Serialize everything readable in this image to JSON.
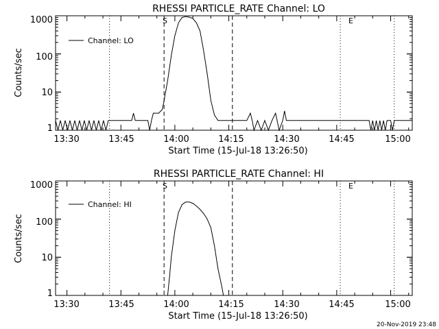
{
  "footer": {
    "timestamp": "20-Nov-2019 23:48"
  },
  "chart_data": [
    {
      "type": "line",
      "title": "RHESSI PARTICLE_RATE Channel: LO",
      "xlabel": "Start Time (15-Jul-18 13:26:50)",
      "ylabel": "Counts/sec",
      "y_scale": "log",
      "ylim": [
        1,
        1000
      ],
      "xlim": [
        "13:26:50",
        "15:06:00"
      ],
      "y_ticks": [
        "1",
        "10",
        "100",
        "1000"
      ],
      "x_ticks": [
        "13:30",
        "13:45",
        "14:00",
        "14:15",
        "14:30",
        "14:45",
        "15:00"
      ],
      "legend": {
        "position": "top-left",
        "entries": [
          "Channel: LO"
        ]
      },
      "markers": [
        {
          "label": "S",
          "time": "13:57:00",
          "style": "dashed"
        },
        {
          "label": "",
          "time": "14:16:00",
          "style": "dashed"
        },
        {
          "label": "E",
          "time": "14:46:00",
          "style": "dotted"
        }
      ],
      "night_lines": [
        {
          "time": "13:41:50",
          "style": "dotted"
        },
        {
          "time": "15:01:00",
          "style": "dotted"
        }
      ],
      "series": [
        {
          "name": "Channel: LO",
          "x": [
            "13:26:50",
            "13:27:30",
            "13:28:10",
            "13:28:50",
            "13:29:30",
            "13:30:10",
            "13:30:50",
            "13:31:30",
            "13:32:10",
            "13:32:50",
            "13:33:30",
            "13:34:10",
            "13:34:50",
            "13:35:30",
            "13:36:10",
            "13:36:50",
            "13:37:30",
            "13:38:10",
            "13:38:50",
            "13:39:30",
            "13:40:10",
            "13:40:50",
            "13:41:30",
            "13:42:10",
            "13:45:00",
            "13:48:00",
            "13:48:30",
            "13:49:00",
            "13:52:30",
            "13:53:00",
            "13:53:30",
            "13:54:00",
            "13:55:30",
            "13:56:30",
            "13:57:00",
            "13:58:00",
            "13:59:00",
            "14:00:00",
            "14:01:00",
            "14:02:00",
            "14:03:00",
            "14:04:00",
            "14:05:00",
            "14:06:00",
            "14:07:00",
            "14:08:00",
            "14:09:00",
            "14:10:00",
            "14:11:00",
            "14:12:00",
            "14:13:00",
            "14:13:30",
            "14:14:00",
            "14:16:00",
            "14:20:00",
            "14:21:00",
            "14:21:30",
            "14:22:00",
            "14:23:00",
            "14:24:00",
            "14:25:00",
            "14:26:00",
            "14:27:00",
            "14:28:00",
            "14:29:00",
            "14:30:00",
            "14:30:30",
            "14:31:00",
            "14:45:00",
            "14:46:30",
            "14:50:00",
            "14:54:00",
            "14:54:30",
            "14:55:00",
            "14:55:30",
            "14:56:00",
            "14:56:30",
            "14:57:00",
            "14:57:30",
            "14:58:00",
            "14:58:30",
            "14:59:00",
            "14:59:30",
            "15:00:00",
            "15:00:30",
            "15:01:00",
            "15:03:00",
            "15:06:00"
          ],
          "values": [
            1.8,
            1,
            1.8,
            1,
            1.8,
            1,
            1.8,
            1,
            1.8,
            1,
            1.8,
            1,
            1.8,
            1,
            1.8,
            1,
            1.8,
            1,
            1.8,
            1,
            1.8,
            1,
            1.8,
            1.8,
            1.8,
            1.8,
            2.8,
            1.8,
            1.8,
            1,
            1.8,
            2.8,
            2.8,
            3.5,
            6,
            20,
            90,
            300,
            650,
            900,
            950,
            920,
            850,
            650,
            400,
            120,
            30,
            6,
            2.5,
            1.8,
            1.8,
            1.8,
            1.8,
            1.8,
            1.8,
            2.8,
            1.8,
            1,
            1.8,
            1,
            1.8,
            1,
            1.8,
            2.8,
            1,
            1.8,
            3.2,
            1.8,
            1.8,
            1.8,
            1.8,
            1.8,
            1,
            1.8,
            1,
            1.8,
            1,
            1.8,
            1,
            1.8,
            1,
            1.8,
            1.8,
            1.8,
            1,
            1.8,
            1.8,
            1.8
          ]
        }
      ]
    },
    {
      "type": "line",
      "title": "RHESSI PARTICLE_RATE Channel: HI",
      "xlabel": "Start Time (15-Jul-18 13:26:50)",
      "ylabel": "Counts/sec",
      "y_scale": "log",
      "ylim": [
        1,
        1000
      ],
      "xlim": [
        "13:26:50",
        "15:06:00"
      ],
      "y_ticks": [
        "1",
        "10",
        "100",
        "1000"
      ],
      "x_ticks": [
        "13:30",
        "13:45",
        "14:00",
        "14:15",
        "14:30",
        "14:45",
        "15:00"
      ],
      "legend": {
        "position": "top-left",
        "entries": [
          "Channel: HI"
        ]
      },
      "markers": [
        {
          "label": "S",
          "time": "13:57:00",
          "style": "dashed"
        },
        {
          "label": "",
          "time": "14:16:00",
          "style": "dashed"
        },
        {
          "label": "E",
          "time": "14:46:00",
          "style": "dotted"
        }
      ],
      "night_lines": [
        {
          "time": "13:41:50",
          "style": "dotted"
        },
        {
          "time": "15:01:00",
          "style": "dotted"
        }
      ],
      "series": [
        {
          "name": "Channel: HI",
          "x": [
            "13:58:00",
            "13:58:30",
            "13:59:00",
            "14:00:00",
            "14:01:00",
            "14:02:00",
            "14:03:00",
            "14:04:00",
            "14:05:00",
            "14:06:00",
            "14:07:00",
            "14:08:00",
            "14:09:00",
            "14:10:00",
            "14:11:00",
            "14:12:00",
            "14:13:00",
            "14:13:30"
          ],
          "values": [
            1,
            3,
            10,
            50,
            150,
            240,
            280,
            280,
            260,
            220,
            180,
            140,
            100,
            60,
            20,
            5,
            1.8,
            1
          ]
        }
      ]
    }
  ]
}
